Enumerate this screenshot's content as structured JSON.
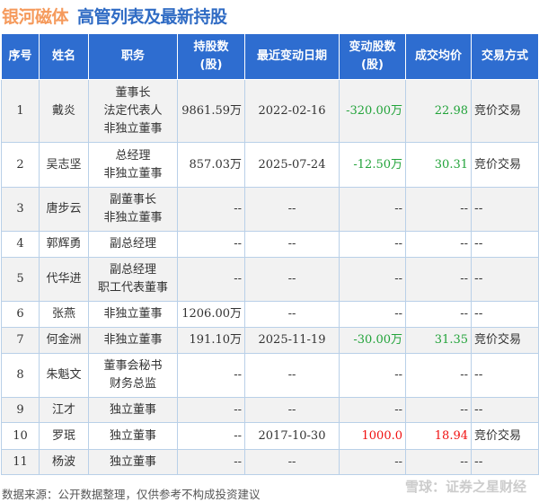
{
  "title": {
    "company": "银河磁体",
    "subtitle": "高管列表及最新持股"
  },
  "colors": {
    "header_bg": "#2e6dd0",
    "decrease": "#22a33a",
    "increase": "#f01010",
    "company": "#f59a5c"
  },
  "table": {
    "headers": [
      "序号",
      "姓名",
      "职务",
      "持股数\n(股)",
      "最近变动日期",
      "变动股数\n(股)",
      "成交均价",
      "交易方式"
    ],
    "rows": [
      {
        "no": "1",
        "name": "戴炎",
        "role": "董事长\n法定代表人\n非独立董事",
        "shares": "9861.59万",
        "date": "2022-02-16",
        "change": "-320.00万",
        "price": "22.98",
        "method": "竞价交易",
        "dir": "down",
        "h": 70
      },
      {
        "no": "2",
        "name": "吴志坚",
        "role": "总经理\n非独立董事",
        "shares": "857.03万",
        "date": "2025-07-24",
        "change": "-12.50万",
        "price": "30.31",
        "method": "竞价交易",
        "dir": "down",
        "h": 50
      },
      {
        "no": "3",
        "name": "唐步云",
        "role": "副董事长\n非独立董事",
        "shares": "--",
        "date": "--",
        "change": "--",
        "price": "--",
        "method": "--",
        "dir": "",
        "h": 49
      },
      {
        "no": "4",
        "name": "郭辉勇",
        "role": "副总经理",
        "shares": "--",
        "date": "--",
        "change": "--",
        "price": "--",
        "method": "--",
        "dir": "",
        "h": 29
      },
      {
        "no": "5",
        "name": "代华进",
        "role": "副总经理\n职工代表董事",
        "shares": "--",
        "date": "--",
        "change": "--",
        "price": "--",
        "method": "--",
        "dir": "",
        "h": 49
      },
      {
        "no": "6",
        "name": "张燕",
        "role": "非独立董事",
        "shares": "1206.00万",
        "date": "--",
        "change": "--",
        "price": "--",
        "method": "--",
        "dir": "",
        "h": 29
      },
      {
        "no": "7",
        "name": "何金洲",
        "role": "非独立董事",
        "shares": "191.10万",
        "date": "2025-11-19",
        "change": "-30.00万",
        "price": "31.35",
        "method": "竞价交易",
        "dir": "down",
        "h": 29
      },
      {
        "no": "8",
        "name": "朱魁文",
        "role": "董事会秘书\n财务总监",
        "shares": "--",
        "date": "--",
        "change": "--",
        "price": "--",
        "method": "--",
        "dir": "",
        "h": 49
      },
      {
        "no": "9",
        "name": "江才",
        "role": "独立董事",
        "shares": "--",
        "date": "--",
        "change": "--",
        "price": "--",
        "method": "--",
        "dir": "",
        "h": 28
      },
      {
        "no": "10",
        "name": "罗珉",
        "role": "独立董事",
        "shares": "--",
        "date": "2017-10-30",
        "change": "1000.0",
        "price": "18.94",
        "method": "竞价交易",
        "dir": "up",
        "h": 30
      },
      {
        "no": "11",
        "name": "杨波",
        "role": "独立董事",
        "shares": "--",
        "date": "--",
        "change": "--",
        "price": "--",
        "method": "--",
        "dir": "",
        "h": 28
      }
    ]
  },
  "footer": {
    "source": "数据来源：公开数据整理，仅供参考不构成投资建议",
    "watermark": "雪球：证券之星财经"
  }
}
